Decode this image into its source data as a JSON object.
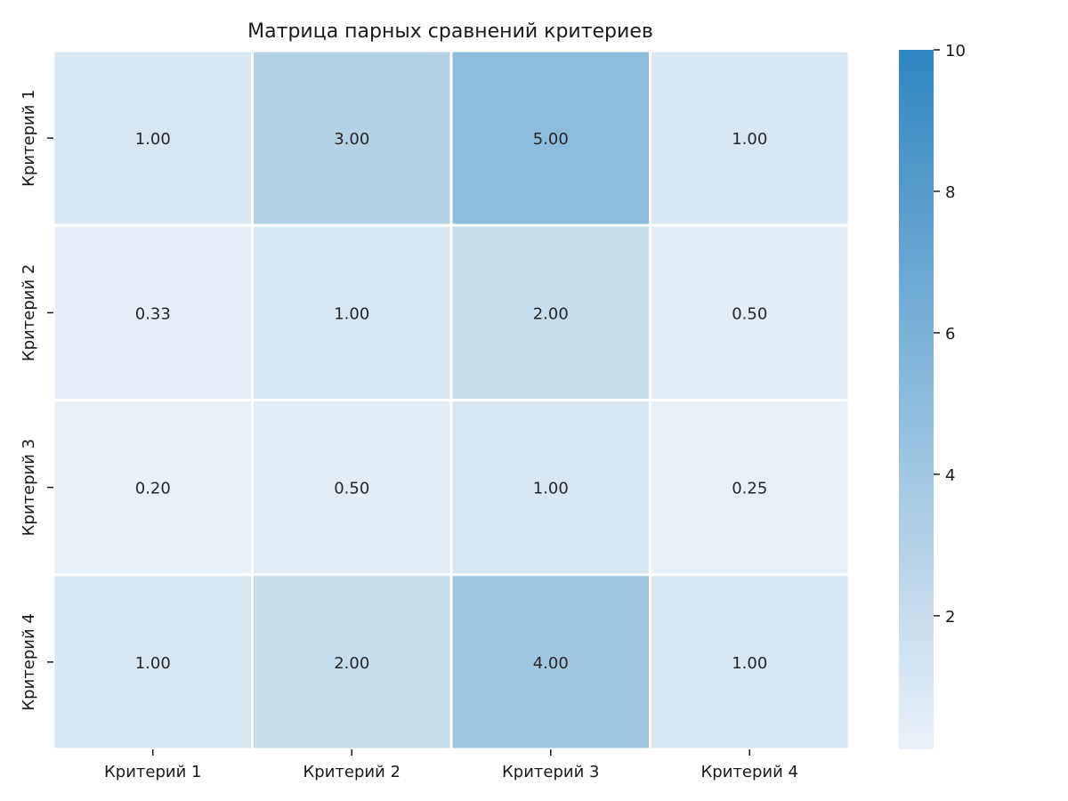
{
  "chart_data": {
    "type": "heatmap",
    "title": "Матрица парных сравнений критериев",
    "x_categories": [
      "Критерий 1",
      "Критерий 2",
      "Критерий 3",
      "Критерий 4"
    ],
    "y_categories": [
      "Критерий 1",
      "Критерий 2",
      "Критерий 3",
      "Критерий 4"
    ],
    "values": [
      [
        1.0,
        3.0,
        5.0,
        1.0
      ],
      [
        0.33,
        1.0,
        2.0,
        0.5
      ],
      [
        0.2,
        0.5,
        1.0,
        0.25
      ],
      [
        1.0,
        2.0,
        4.0,
        1.0
      ]
    ],
    "value_labels": [
      [
        "1.00",
        "3.00",
        "5.00",
        "1.00"
      ],
      [
        "0.33",
        "1.00",
        "2.00",
        "0.50"
      ],
      [
        "0.20",
        "0.50",
        "1.00",
        "0.25"
      ],
      [
        "1.00",
        "2.00",
        "4.00",
        "1.00"
      ]
    ],
    "colorbar": {
      "vmin": 0.111,
      "vmax": 10,
      "ticks": [
        2,
        4,
        6,
        8,
        10
      ],
      "tick_labels": [
        "2",
        "4",
        "6",
        "8",
        "10"
      ]
    },
    "colors": {
      "low": "#eaf1f8",
      "high": "#2f86c1",
      "cell_border": "#ffffff",
      "text": "#262626"
    },
    "xlabel": "",
    "ylabel": ""
  }
}
